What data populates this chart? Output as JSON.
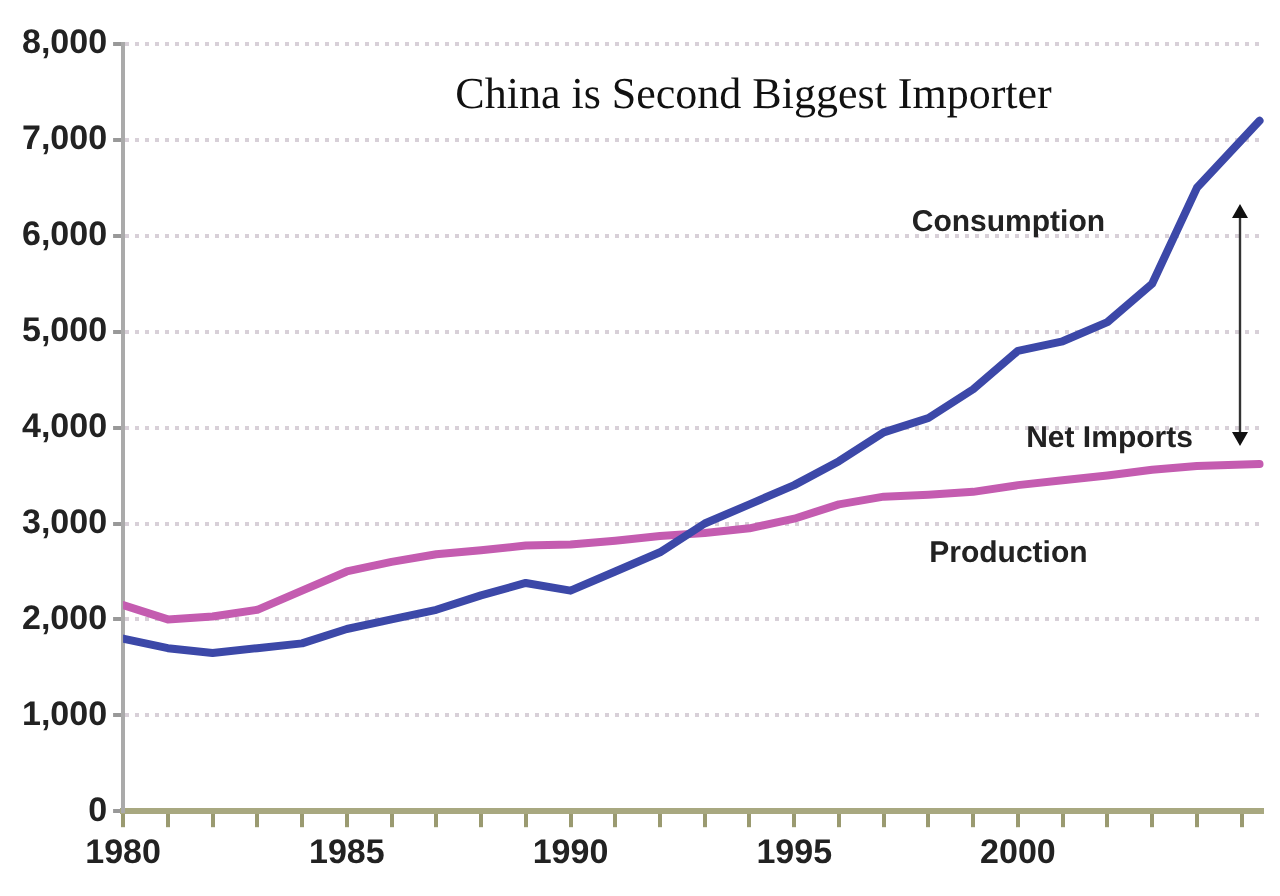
{
  "chart_data": {
    "type": "line",
    "title": "China is Second Biggest Importer",
    "x": [
      1980,
      1981,
      1982,
      1983,
      1984,
      1985,
      1986,
      1987,
      1988,
      1989,
      1990,
      1991,
      1992,
      1993,
      1994,
      1995,
      1996,
      1997,
      1998,
      1999,
      2000,
      2001,
      2002,
      2003,
      2004,
      2005.4
    ],
    "series": [
      {
        "name": "Consumption",
        "color": "#3c48a8",
        "values": [
          1800,
          1700,
          1650,
          1700,
          1750,
          1900,
          2000,
          2100,
          2250,
          2380,
          2300,
          2500,
          2700,
          3000,
          3200,
          3400,
          3650,
          3950,
          4100,
          4400,
          4800,
          4900,
          5100,
          5500,
          6500,
          7200
        ]
      },
      {
        "name": "Production",
        "color": "#c45cb0",
        "values": [
          2150,
          2000,
          2030,
          2100,
          2300,
          2500,
          2600,
          2680,
          2720,
          2770,
          2780,
          2820,
          2870,
          2900,
          2950,
          3050,
          3200,
          3280,
          3300,
          3330,
          3400,
          3450,
          3500,
          3560,
          3600,
          3620
        ]
      }
    ],
    "annotations": [
      "Net Imports"
    ],
    "xlim": [
      1980,
      2005.5
    ],
    "xticks": [
      1980,
      {
        "value": 1981,
        "label": null
      },
      {
        "value": 1982,
        "label": null
      },
      {
        "value": 1983,
        "label": null
      },
      {
        "value": 1984,
        "label": null
      },
      1985,
      {
        "value": 1986,
        "label": null
      },
      {
        "value": 1987,
        "label": null
      },
      {
        "value": 1988,
        "label": null
      },
      {
        "value": 1989,
        "label": null
      },
      1990,
      {
        "value": 1991,
        "label": null
      },
      {
        "value": 1992,
        "label": null
      },
      {
        "value": 1993,
        "label": null
      },
      {
        "value": 1994,
        "label": null
      },
      1995,
      {
        "value": 1996,
        "label": null
      },
      {
        "value": 1997,
        "label": null
      },
      {
        "value": 1998,
        "label": null
      },
      {
        "value": 1999,
        "label": null
      },
      2000,
      {
        "value": 2001,
        "label": null
      },
      {
        "value": 2002,
        "label": null
      },
      {
        "value": 2003,
        "label": null
      },
      {
        "value": 2004,
        "label": null
      },
      {
        "value": 2005,
        "label": null
      }
    ],
    "ylim": [
      0,
      8000
    ],
    "yticks": [
      {
        "value": 0,
        "label": "0"
      },
      {
        "value": 1000,
        "label": "1,000"
      },
      {
        "value": 2000,
        "label": "2,000"
      },
      {
        "value": 3000,
        "label": "3,000"
      },
      {
        "value": 4000,
        "label": "4,000"
      },
      {
        "value": 5000,
        "label": "5,000"
      },
      {
        "value": 6000,
        "label": "6,000"
      },
      {
        "value": 7000,
        "label": "7,000"
      },
      {
        "value": 8000,
        "label": "8,000"
      }
    ],
    "grid": "y",
    "legend": false,
    "marker": "none",
    "line_style": "solid"
  }
}
